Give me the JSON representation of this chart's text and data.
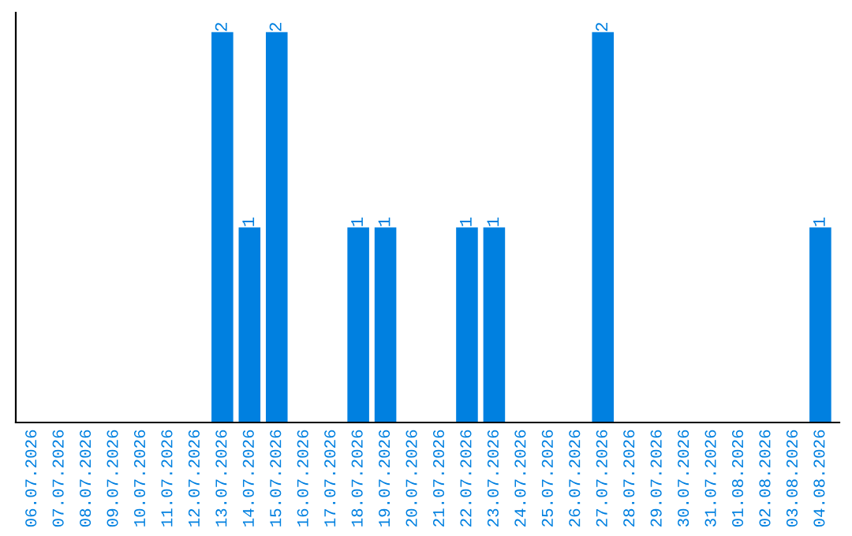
{
  "chart_data": {
    "type": "bar",
    "categories": [
      "06.07.2026",
      "07.07.2026",
      "08.07.2026",
      "09.07.2026",
      "10.07.2026",
      "11.07.2026",
      "12.07.2026",
      "13.07.2026",
      "14.07.2026",
      "15.07.2026",
      "16.07.2026",
      "17.07.2026",
      "18.07.2026",
      "19.07.2026",
      "20.07.2026",
      "21.07.2026",
      "22.07.2026",
      "23.07.2026",
      "24.07.2026",
      "25.07.2026",
      "26.07.2026",
      "27.07.2026",
      "28.07.2026",
      "29.07.2026",
      "30.07.2026",
      "31.07.2026",
      "01.08.2026",
      "02.08.2026",
      "03.08.2026",
      "04.08.2026"
    ],
    "values": [
      0,
      0,
      0,
      0,
      0,
      0,
      0,
      2,
      1,
      2,
      0,
      0,
      1,
      1,
      0,
      0,
      1,
      1,
      0,
      0,
      0,
      2,
      0,
      0,
      0,
      0,
      0,
      0,
      0,
      1
    ],
    "value_labels": [
      null,
      null,
      null,
      null,
      null,
      null,
      null,
      "2",
      "1",
      "2",
      null,
      null,
      "1",
      "1",
      null,
      null,
      "1",
      "1",
      null,
      null,
      null,
      "2",
      null,
      null,
      null,
      null,
      null,
      null,
      null,
      "1"
    ],
    "color": "#0080e0",
    "tick_labels": "x",
    "grid": false,
    "legend": false
  }
}
